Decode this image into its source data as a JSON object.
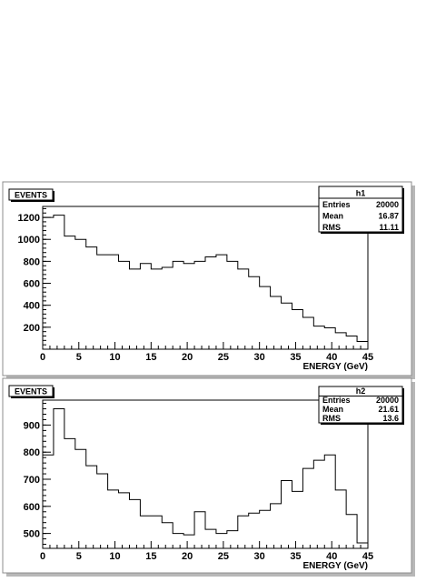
{
  "chart_data": [
    {
      "type": "bar",
      "histogram": "h1",
      "title": "EVENTS",
      "xlabel": "ENERGY (GeV)",
      "ylabel": "",
      "xlim": [
        0,
        45
      ],
      "ylim": [
        0,
        1300
      ],
      "bin_width": 1.5,
      "x_ticks": [
        0,
        5,
        10,
        15,
        20,
        25,
        30,
        35,
        40,
        45
      ],
      "x_tick_labels": [
        "0",
        "5",
        "10",
        "15",
        "20",
        "25",
        "30",
        "35",
        "40",
        "45"
      ],
      "y_ticks": [
        200,
        400,
        600,
        800,
        1000,
        1200
      ],
      "y_tick_labels": [
        "200",
        "400",
        "600",
        "800",
        "1000",
        "1200"
      ],
      "values": [
        1200,
        1220,
        1030,
        1000,
        930,
        860,
        860,
        800,
        730,
        780,
        730,
        745,
        800,
        780,
        800,
        840,
        860,
        800,
        730,
        660,
        570,
        480,
        420,
        360,
        290,
        210,
        195,
        150,
        120,
        70
      ],
      "stats": {
        "name": "h1",
        "rows": [
          {
            "label": "Entries",
            "value": "20000"
          },
          {
            "label": "Mean",
            "value": "16.87"
          },
          {
            "label": "RMS",
            "value": "11.11"
          }
        ]
      },
      "legend": "top-right"
    },
    {
      "type": "bar",
      "histogram": "h2",
      "title": "EVENTS",
      "xlabel": "ENERGY (GeV)",
      "ylabel": "",
      "xlim": [
        0,
        45
      ],
      "ylim": [
        445,
        992
      ],
      "bin_width": 1.5,
      "x_ticks": [
        0,
        5,
        10,
        15,
        20,
        25,
        30,
        35,
        40,
        45
      ],
      "x_tick_labels": [
        "0",
        "5",
        "10",
        "15",
        "20",
        "25",
        "30",
        "35",
        "40",
        "45"
      ],
      "y_ticks": [
        500,
        600,
        700,
        800,
        900
      ],
      "y_tick_labels": [
        "500",
        "600",
        "700",
        "800",
        "900"
      ],
      "values": [
        790,
        960,
        850,
        810,
        750,
        720,
        660,
        650,
        625,
        565,
        565,
        540,
        500,
        495,
        580,
        515,
        500,
        510,
        565,
        575,
        585,
        610,
        695,
        655,
        740,
        770,
        790,
        660,
        570,
        465
      ],
      "stats": {
        "name": "h2",
        "rows": [
          {
            "label": "Entries",
            "value": "20000"
          },
          {
            "label": "Mean",
            "value": "21.61"
          },
          {
            "label": "RMS",
            "value": "13.6"
          }
        ]
      },
      "legend": "top-right"
    }
  ]
}
